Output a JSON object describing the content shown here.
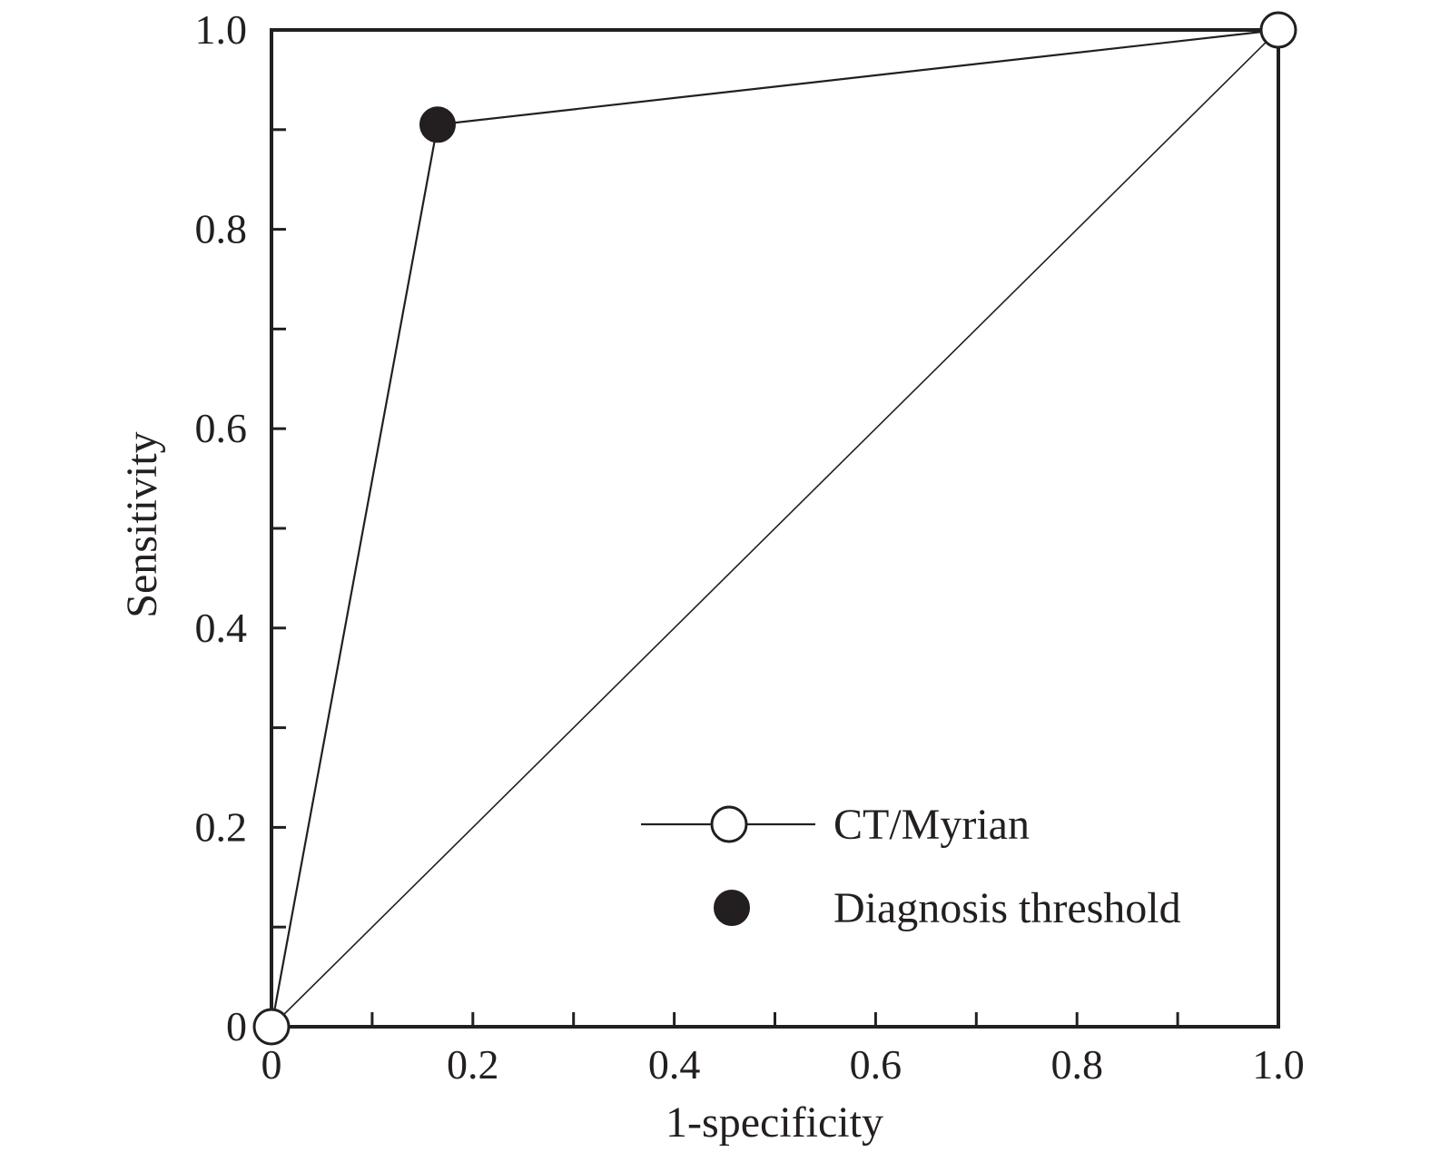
{
  "chart_data": {
    "type": "line",
    "title": "",
    "xlabel": "1-specificity",
    "ylabel": "Sensitivity",
    "xlim": [
      0,
      1
    ],
    "ylim": [
      0,
      1
    ],
    "x_ticks": [
      {
        "value": 0,
        "label": "0"
      },
      {
        "value": 0.2,
        "label": "0.2"
      },
      {
        "value": 0.4,
        "label": "0.4"
      },
      {
        "value": 0.6,
        "label": "0.6"
      },
      {
        "value": 0.8,
        "label": "0.8"
      },
      {
        "value": 1.0,
        "label": "1.0"
      }
    ],
    "y_ticks": [
      {
        "value": 0,
        "label": "0"
      },
      {
        "value": 0.2,
        "label": "0.2"
      },
      {
        "value": 0.4,
        "label": "0.4"
      },
      {
        "value": 0.6,
        "label": "0.6"
      },
      {
        "value": 0.8,
        "label": "0.8"
      },
      {
        "value": 1.0,
        "label": "1.0"
      }
    ],
    "minor_tick_step": 0.1,
    "grid": false,
    "legend_position": "bottom-right",
    "series": [
      {
        "name": "CT/Myrian",
        "marker": "open-circle",
        "points": [
          {
            "x": 0,
            "y": 0
          },
          {
            "x": 0.165,
            "y": 0.905
          },
          {
            "x": 1.0,
            "y": 1.0
          }
        ],
        "marked_points": [
          {
            "x": 0,
            "y": 0
          },
          {
            "x": 1.0,
            "y": 1.0
          }
        ]
      },
      {
        "name": "Diagnosis threshold",
        "marker": "filled-circle",
        "line": false,
        "points": [
          {
            "x": 0.165,
            "y": 0.905
          }
        ]
      }
    ],
    "reference_line": {
      "points": [
        {
          "x": 0,
          "y": 0
        },
        {
          "x": 1.0,
          "y": 1.0
        }
      ]
    },
    "colors": {
      "line": "#231f20",
      "open_marker_fill": "#ffffff",
      "filled_marker": "#231f20"
    }
  }
}
